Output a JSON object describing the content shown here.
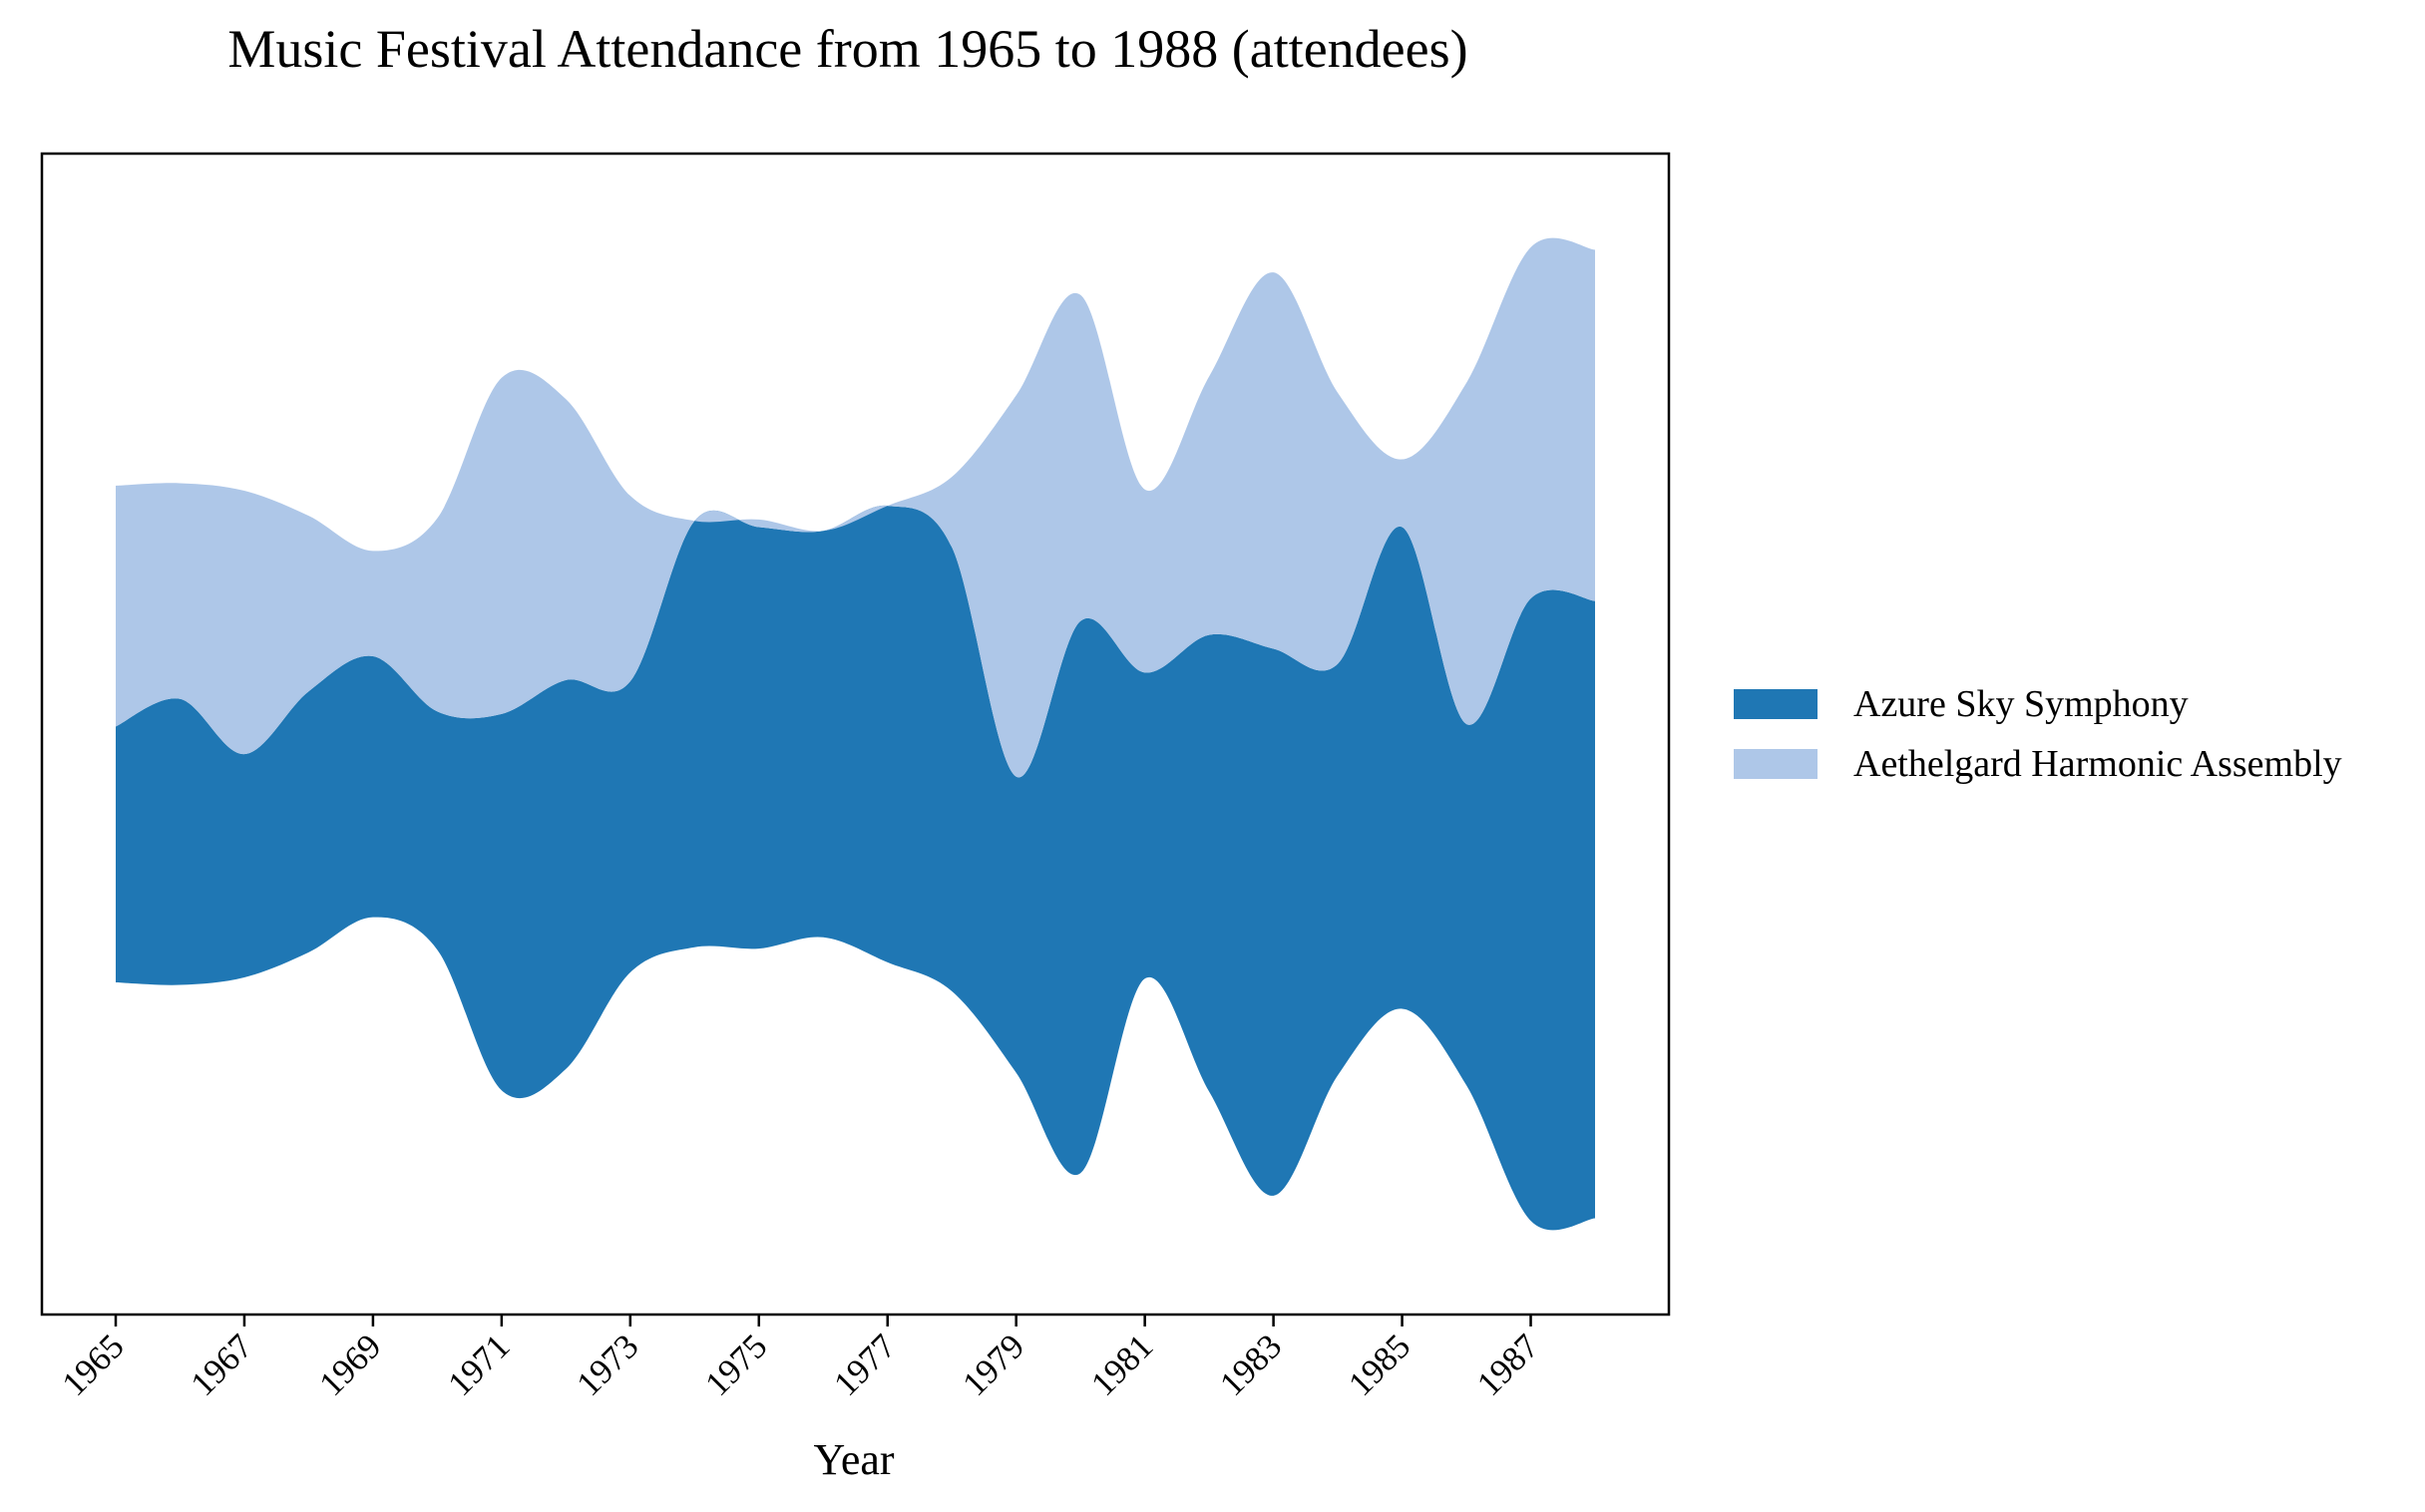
{
  "chart_data": {
    "type": "area",
    "subtype": "streamgraph",
    "title": "Music Festival Attendance from 1965 to 1988 (attendees)",
    "xlabel": "Year",
    "ylabel": "",
    "x": [
      1965,
      1966,
      1967,
      1968,
      1969,
      1970,
      1971,
      1972,
      1973,
      1974,
      1975,
      1976,
      1977,
      1978,
      1979,
      1980,
      1981,
      1982,
      1983,
      1984,
      1985,
      1986,
      1987,
      1988
    ],
    "x_tick_labels": [
      "1965",
      "1967",
      "1969",
      "1971",
      "1973",
      "1975",
      "1977",
      "1979",
      "1981",
      "1983",
      "1985",
      "1987"
    ],
    "y_ticks_visible": false,
    "baseline": "symmetric",
    "series": [
      {
        "name": "Azure Sky Symphony",
        "color": "#1f77b4",
        "values": [
          5100,
          5700,
          4450,
          5200,
          5200,
          4750,
          7500,
          7750,
          5800,
          8500,
          8400,
          8100,
          9100,
          8850,
          5900,
          11000,
          6100,
          9100,
          10900,
          8200,
          9600,
          7200,
          12400,
          12300
        ]
      },
      {
        "name": "Aethelgard Harmonic Assembly",
        "color": "#aec7e8",
        "values": [
          4800,
          4300,
          5250,
          3500,
          2100,
          3850,
          6700,
          5600,
          3700,
          0,
          150,
          0,
          0,
          1400,
          7600,
          6500,
          3650,
          5150,
          7500,
          5400,
          1350,
          6800,
          7000,
          7000
        ]
      }
    ],
    "legend_position": "right"
  }
}
